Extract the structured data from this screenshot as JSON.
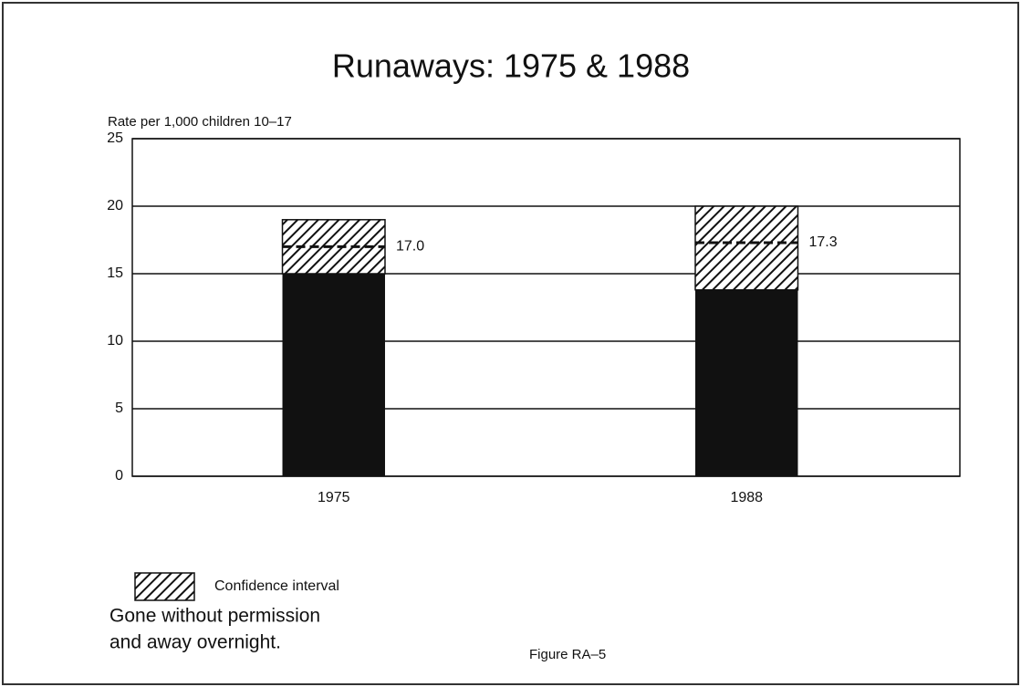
{
  "chart_data": {
    "type": "bar",
    "title": "Runaways: 1975 & 1988",
    "y_label": "Rate per 1,000 children 10–17",
    "categories": [
      "1975",
      "1988"
    ],
    "values": [
      17.0,
      17.3
    ],
    "value_labels": [
      "17.0",
      "17.3"
    ],
    "ci_low": [
      15,
      13.8
    ],
    "ci_high": [
      19,
      20
    ],
    "color": "#111111",
    "ci_label": "Confidence interval",
    "ylim": [
      0,
      25
    ],
    "yticks": [
      0,
      5,
      10,
      15,
      20,
      25
    ],
    "grid": true,
    "notes": [
      "Gone without permission",
      "and away overnight."
    ],
    "figure_label": "Figure RA–5"
  }
}
